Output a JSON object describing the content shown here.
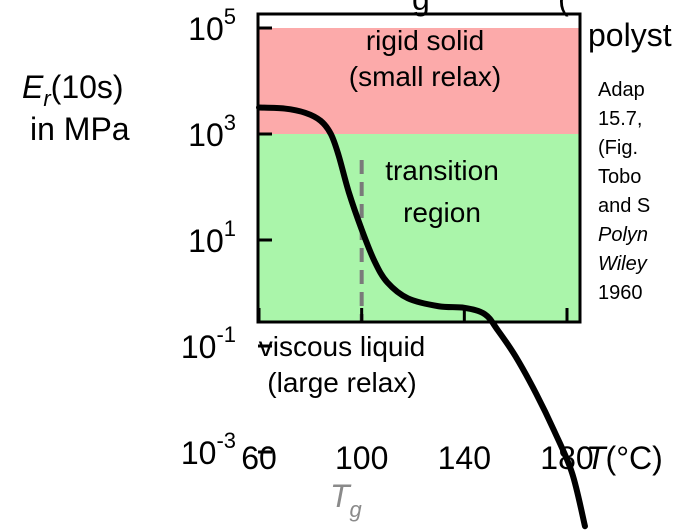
{
  "chart_data": {
    "type": "line",
    "title_fragments": [
      "g",
      "(",
      "polyst"
    ],
    "ylabel_symbol": "E",
    "ylabel_sub": "r",
    "ylabel_time": "(10s)",
    "ylabel_unit": "in MPa",
    "xlabel_symbol": "T",
    "xlabel_unit": "(°C)",
    "x_ticks": [
      "60",
      "100",
      "140",
      "180"
    ],
    "y_ticks": [
      {
        "base": "10",
        "exp": "5",
        "value": 100000
      },
      {
        "base": "10",
        "exp": "3",
        "value": 1000
      },
      {
        "base": "10",
        "exp": "1",
        "value": 10
      },
      {
        "base": "10",
        "exp": "-1",
        "value": 0.1
      },
      {
        "base": "10",
        "exp": "-3",
        "value": 0.001
      }
    ],
    "y_scale": "log",
    "xlim": [
      60,
      195
    ],
    "ylim_exp": [
      -4.4,
      5
    ],
    "regions": [
      {
        "name": "rigid-solid",
        "label_lines": [
          "rigid solid",
          "(small relax)"
        ],
        "y_exp_range": [
          3,
          5
        ],
        "color": "#fcaaaa"
      },
      {
        "name": "transition",
        "label_lines": [
          "transition",
          "region"
        ],
        "y_exp_range": [
          -1.5,
          3
        ],
        "color": "#aaf5aa"
      },
      {
        "name": "viscous-liquid",
        "label_lines": [
          "viscous liquid",
          "(large relax)"
        ],
        "y_exp_range": [
          -4.4,
          -1.5
        ],
        "color": "#abd2fa"
      }
    ],
    "tg": {
      "label": "T",
      "sub": "g",
      "x": 100
    },
    "series": [
      {
        "points": [
          [
            60,
            3.5
          ],
          [
            70,
            3.48
          ],
          [
            78,
            3.4
          ],
          [
            84,
            3.25
          ],
          [
            88,
            3.0
          ],
          [
            91,
            2.6
          ],
          [
            95,
            1.9
          ],
          [
            100,
            1.2
          ],
          [
            105,
            0.6
          ],
          [
            110,
            0.2
          ],
          [
            118,
            -0.1
          ],
          [
            130,
            -0.25
          ],
          [
            140,
            -0.28
          ],
          [
            148,
            -0.4
          ],
          [
            153,
            -0.7
          ],
          [
            160,
            -1.2
          ],
          [
            168,
            -1.9
          ],
          [
            175,
            -2.6
          ],
          [
            182,
            -3.4
          ],
          [
            187,
            -4.4
          ]
        ]
      }
    ],
    "annotation_lines": [
      "Adap",
      "15.7,",
      "(Fig.",
      "Tobo",
      "and S",
      "Polyn",
      "Wiley",
      "1960"
    ]
  }
}
